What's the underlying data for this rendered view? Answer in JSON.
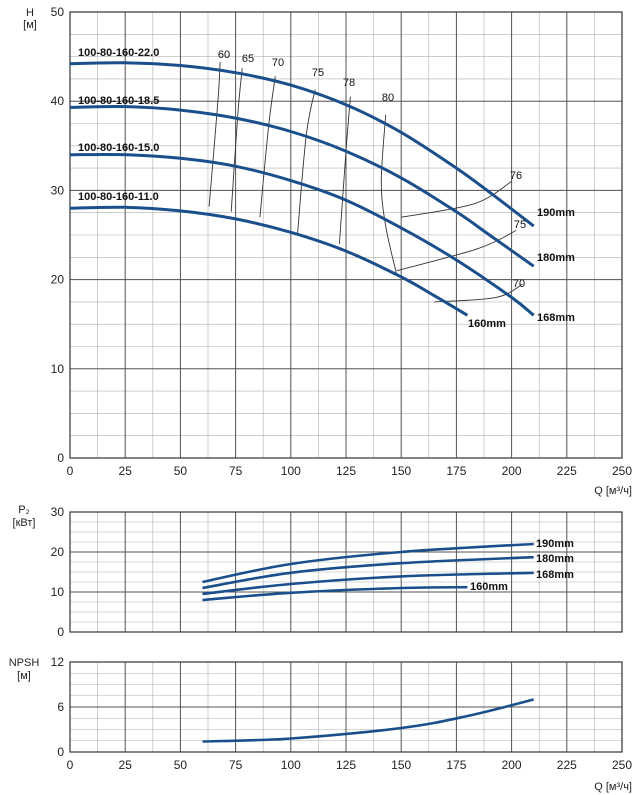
{
  "colors": {
    "curve": "#1a4f8c",
    "grid_major": "#555555",
    "grid_minor": "#b0b0b0",
    "iso": "#333333"
  },
  "chart_data": [
    {
      "type": "line",
      "ylabel": "H [м]",
      "xlabel": "Q [м³/ч]",
      "xlim": [
        0,
        250
      ],
      "ylim": [
        0,
        50
      ],
      "x_ticks": [
        0,
        25,
        50,
        75,
        100,
        125,
        150,
        175,
        200,
        225,
        250
      ],
      "y_ticks": [
        0,
        10,
        20,
        30,
        40,
        50
      ],
      "grid": true,
      "series": [
        {
          "name": "190mm",
          "x": [
            0,
            25,
            50,
            75,
            100,
            125,
            150,
            175,
            190,
            210
          ],
          "y": [
            44.2,
            44.3,
            44.0,
            43.2,
            41.8,
            39.6,
            36.5,
            32.5,
            29.8,
            26.0
          ]
        },
        {
          "name": "180mm",
          "x": [
            0,
            25,
            50,
            75,
            100,
            125,
            150,
            175,
            190,
            210
          ],
          "y": [
            39.3,
            39.4,
            39.0,
            38.1,
            36.6,
            34.4,
            31.4,
            27.6,
            25.0,
            21.5
          ]
        },
        {
          "name": "168mm",
          "x": [
            0,
            25,
            50,
            75,
            100,
            125,
            150,
            175,
            200,
            210
          ],
          "y": [
            34.0,
            34.0,
            33.6,
            32.7,
            31.1,
            28.9,
            25.8,
            22.2,
            18.0,
            16.0
          ]
        },
        {
          "name": "160mm",
          "x": [
            0,
            25,
            50,
            75,
            100,
            125,
            150,
            165,
            180
          ],
          "y": [
            28.0,
            28.1,
            27.7,
            26.8,
            25.3,
            23.2,
            20.3,
            18.2,
            16.0
          ]
        }
      ],
      "motor_labels": [
        "100-80-160-22.0",
        "100-80-160-18.5",
        "100-80-160-15.0",
        "100-80-160-11.0"
      ],
      "efficiency_labels": [
        "60",
        "65",
        "70",
        "75",
        "78",
        "80",
        "76",
        "75",
        "70"
      ],
      "efficiency_lines": [
        {
          "label": "60",
          "x": [
            63,
            67,
            68
          ],
          "y": [
            28.2,
            40.0,
            44.4
          ]
        },
        {
          "label": "65",
          "x": [
            73,
            76,
            78
          ],
          "y": [
            27.6,
            38.5,
            43.7
          ]
        },
        {
          "label": "70",
          "x": [
            86,
            90,
            93
          ],
          "y": [
            27.0,
            37.3,
            42.8
          ]
        },
        {
          "label": "75",
          "x": [
            103,
            107,
            111
          ],
          "y": [
            25.0,
            36.2,
            41.3
          ]
        },
        {
          "label": "78",
          "x": [
            122,
            125,
            127
          ],
          "y": [
            24.0,
            34.4,
            40.5
          ]
        },
        {
          "label": "80",
          "x": [
            148,
            143,
            141,
            143
          ],
          "y": [
            20.5,
            26.0,
            31.0,
            38.5
          ]
        },
        {
          "label": "76",
          "x": [
            150,
            183,
            200
          ],
          "y": [
            27.0,
            28.5,
            31.0
          ]
        },
        {
          "label": "75",
          "x": [
            148,
            185,
            202
          ],
          "y": [
            21.0,
            23.5,
            25.5
          ]
        },
        {
          "label": "70",
          "x": [
            165,
            193,
            205
          ],
          "y": [
            17.5,
            18.0,
            19.5
          ]
        }
      ]
    },
    {
      "type": "line",
      "ylabel": "P₂ [кВт]",
      "xlim": [
        0,
        250
      ],
      "ylim": [
        0,
        30
      ],
      "x_ticks": [],
      "y_ticks": [
        0,
        10,
        20,
        30
      ],
      "grid": true,
      "series": [
        {
          "name": "190mm",
          "x": [
            60,
            100,
            150,
            210
          ],
          "y": [
            12.5,
            17.0,
            20.0,
            22.0
          ]
        },
        {
          "name": "180mm",
          "x": [
            60,
            100,
            150,
            210
          ],
          "y": [
            11.0,
            14.8,
            17.2,
            18.7
          ]
        },
        {
          "name": "168mm",
          "x": [
            60,
            100,
            150,
            210
          ],
          "y": [
            9.5,
            12.0,
            13.9,
            14.8
          ]
        },
        {
          "name": "160mm",
          "x": [
            60,
            100,
            150,
            180
          ],
          "y": [
            8.0,
            9.8,
            11.0,
            11.2
          ]
        }
      ]
    },
    {
      "type": "line",
      "ylabel": "NPSH [м]",
      "xlabel": "Q [м³/ч]",
      "xlim": [
        0,
        250
      ],
      "ylim": [
        0,
        12
      ],
      "x_ticks": [
        0,
        25,
        50,
        75,
        100,
        125,
        150,
        175,
        200,
        225,
        250
      ],
      "y_ticks": [
        0,
        6,
        12
      ],
      "grid": true,
      "series": [
        {
          "name": "",
          "x": [
            60,
            100,
            150,
            180,
            210
          ],
          "y": [
            1.4,
            1.8,
            3.2,
            4.8,
            7.0
          ]
        }
      ]
    }
  ]
}
